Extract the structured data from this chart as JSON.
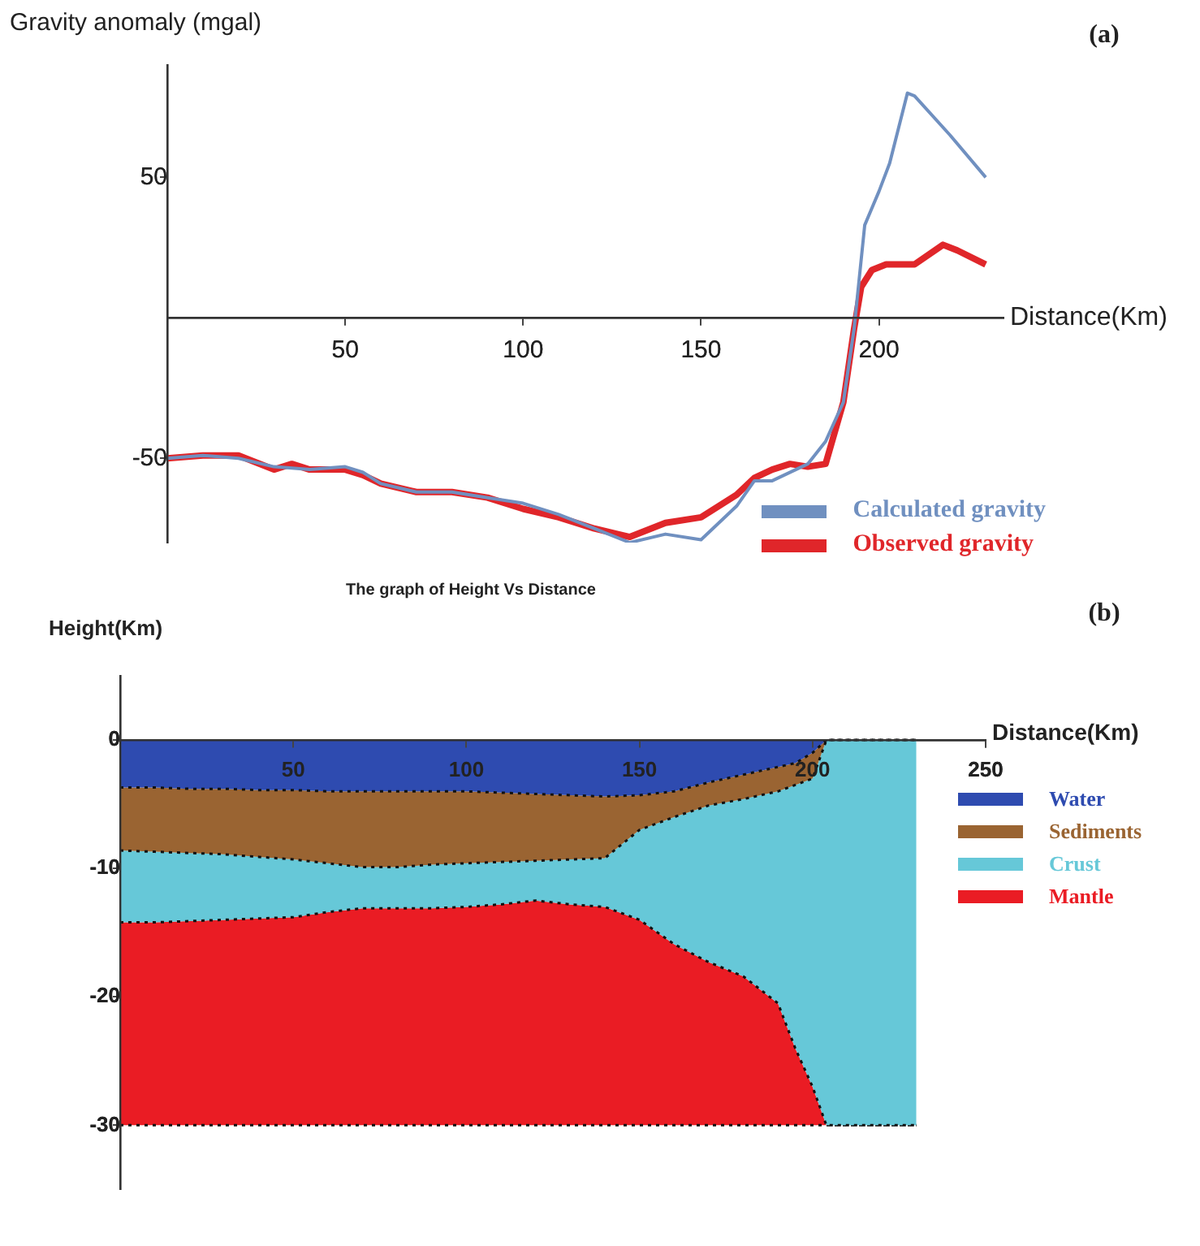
{
  "chart_data": [
    {
      "type": "line",
      "xlabel": "Distance(Km)",
      "ylabel": "Gravity anomaly (mgal)",
      "annotations": [
        "(a)"
      ],
      "xlim": [
        0,
        235
      ],
      "ylim": [
        -80,
        90
      ],
      "xticks": [
        50,
        100,
        150,
        200
      ],
      "yticks": [
        -50,
        50
      ],
      "grid": false,
      "legend": "bottom right",
      "series": [
        {
          "name": "Calculated gravity",
          "color": "#7090c0",
          "x": [
            0,
            10,
            20,
            30,
            40,
            50,
            55,
            60,
            70,
            80,
            90,
            100,
            110,
            120,
            130,
            140,
            150,
            160,
            165,
            170,
            180,
            185,
            190,
            193,
            196,
            200,
            203,
            208,
            210,
            220,
            230
          ],
          "values": [
            -50,
            -49,
            -50,
            -53,
            -54,
            -53,
            -55,
            -59,
            -62,
            -62,
            -64,
            -66,
            -70,
            -75,
            -80,
            -77,
            -79,
            -67,
            -58,
            -58,
            -52,
            -44,
            -30,
            -4,
            33,
            45,
            55,
            80,
            79,
            65,
            50
          ]
        },
        {
          "name": "Observed gravity",
          "color": "#e0262a",
          "x": [
            0,
            10,
            20,
            30,
            35,
            40,
            50,
            55,
            60,
            70,
            80,
            90,
            100,
            110,
            120,
            130,
            140,
            150,
            160,
            165,
            170,
            175,
            180,
            185,
            190,
            193,
            195,
            198,
            202,
            210,
            218,
            222,
            230
          ],
          "values": [
            -50,
            -49,
            -49,
            -54,
            -52,
            -54,
            -54,
            -56,
            -59,
            -62,
            -62,
            -64,
            -68,
            -71,
            -75,
            -78,
            -73,
            -71,
            -63,
            -57,
            -54,
            -52,
            -53,
            -52,
            -30,
            -4,
            11,
            17,
            19,
            19,
            26,
            24,
            19
          ]
        }
      ]
    },
    {
      "type": "area",
      "title": "The graph of Height Vs Distance",
      "xlabel": "Distance(Km)",
      "ylabel": "Height(Km)",
      "annotations": [
        "(b)"
      ],
      "xlim": [
        0,
        250
      ],
      "ylim": [
        -35,
        5
      ],
      "xticks": [
        50,
        100,
        150,
        200,
        250
      ],
      "yticks": [
        0,
        -10,
        -20,
        -30
      ],
      "grid": false,
      "legend": "right",
      "stacked": true,
      "line_style": "dotted",
      "x": [
        0,
        10,
        20,
        30,
        40,
        50,
        60,
        70,
        80,
        90,
        100,
        110,
        120,
        130,
        140,
        150,
        160,
        170,
        180,
        190,
        195,
        200,
        204,
        210,
        220,
        230
      ],
      "series": [
        {
          "name": "Water",
          "color": "#2e4bb0",
          "values": [
            -3.7,
            -3.7,
            -3.8,
            -3.8,
            -3.9,
            -3.9,
            -4.0,
            -4.0,
            -4.0,
            -4.0,
            -4.0,
            -4.1,
            -4.2,
            -4.3,
            -4.4,
            -4.3,
            -4.0,
            -3.3,
            -2.7,
            -2.1,
            -1.8,
            -1.0,
            0,
            0,
            0,
            0
          ]
        },
        {
          "name": "Sediments",
          "color": "#9a6432",
          "values": [
            -4.9,
            -5.0,
            -5.0,
            -5.1,
            -5.2,
            -5.4,
            -5.6,
            -5.9,
            -5.9,
            -5.7,
            -5.6,
            -5.4,
            -5.2,
            -5.0,
            -4.8,
            -2.7,
            -2.0,
            -1.8,
            -1.9,
            -1.9,
            -1.7,
            -2.0,
            0,
            0,
            0,
            0
          ]
        },
        {
          "name": "Crust",
          "color": "#66c8d8",
          "values": [
            -5.6,
            -5.5,
            -5.3,
            -5.1,
            -4.8,
            -4.5,
            -3.8,
            -3.2,
            -3.2,
            -3.4,
            -3.4,
            -3.3,
            -3.1,
            -3.5,
            -3.8,
            -7.0,
            -9.9,
            -12.2,
            -13.8,
            -16.5,
            -20.5,
            -24.0,
            -30,
            -30,
            -30,
            -30
          ]
        },
        {
          "name": "Mantle",
          "color": "#ea1c24",
          "values": [
            -15.8,
            -15.8,
            -15.9,
            -16.0,
            -16.1,
            -16.2,
            -16.6,
            -16.9,
            -16.9,
            -16.9,
            -17.0,
            -17.2,
            -17.5,
            -17.2,
            -17.0,
            -16.0,
            -14.1,
            -12.7,
            -11.6,
            -9.5,
            -6.0,
            -3.0,
            0,
            0,
            0,
            0
          ]
        }
      ]
    }
  ]
}
